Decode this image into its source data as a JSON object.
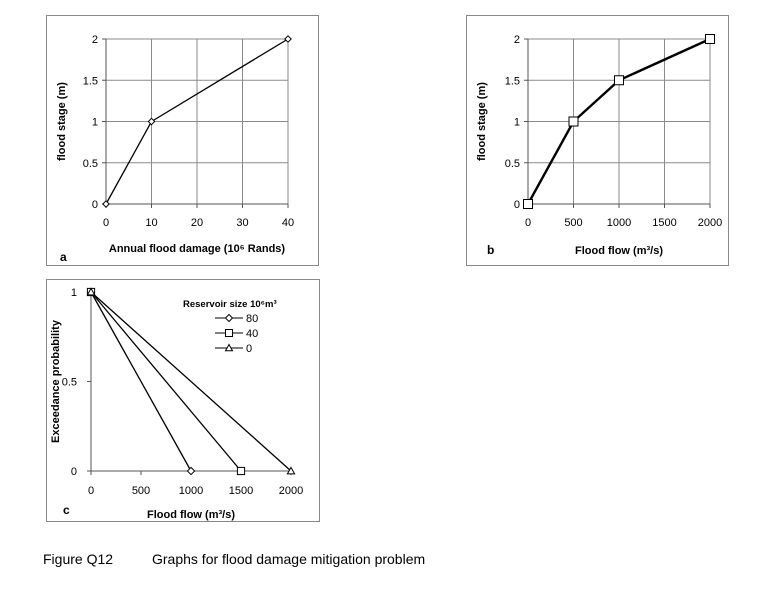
{
  "figure": {
    "number": "Figure Q12",
    "caption": "Graphs for flood damage mitigation problem"
  },
  "chart_data": [
    {
      "id": "a",
      "panel_label": "a",
      "type": "line",
      "title": "",
      "xlabel": "Annual flood damage (10⁶ Rands)",
      "ylabel": "flood stage (m)",
      "xlim": [
        0,
        40
      ],
      "ylim": [
        0,
        2
      ],
      "x_ticks": [
        0,
        10,
        20,
        30,
        40
      ],
      "y_ticks": [
        0,
        0.5,
        1,
        1.5,
        2
      ],
      "x_tick_labels": [
        "0",
        "10",
        "20",
        "30",
        "40"
      ],
      "y_tick_labels": [
        "0",
        "0.5",
        "1",
        "1.5",
        "2"
      ],
      "grid": true,
      "series": [
        {
          "name": "",
          "marker": "diamond",
          "x": [
            0,
            10,
            40
          ],
          "y": [
            0,
            1,
            2
          ]
        }
      ]
    },
    {
      "id": "b",
      "panel_label": "b",
      "type": "line",
      "title": "",
      "xlabel": "Flood flow (m³/s)",
      "ylabel": "flood stage (m)",
      "xlim": [
        0,
        2000
      ],
      "ylim": [
        0,
        2
      ],
      "x_ticks": [
        0,
        500,
        1000,
        1500,
        2000
      ],
      "y_ticks": [
        0,
        0.5,
        1,
        1.5,
        2
      ],
      "x_tick_labels": [
        "0",
        "500",
        "1000",
        "1500",
        "2000"
      ],
      "y_tick_labels": [
        "0",
        "0.5",
        "1",
        "1.5",
        "2"
      ],
      "grid": true,
      "series": [
        {
          "name": "",
          "marker": "square",
          "x": [
            0,
            500,
            1000,
            2000
          ],
          "y": [
            0,
            1,
            1.5,
            2
          ]
        }
      ]
    },
    {
      "id": "c",
      "panel_label": "c",
      "type": "line",
      "title": "",
      "xlabel": "Flood flow (m³/s)",
      "ylabel": "Exceedance probability",
      "xlim": [
        0,
        2000
      ],
      "ylim": [
        0,
        1
      ],
      "x_ticks": [
        0,
        500,
        1000,
        1500,
        2000
      ],
      "y_ticks": [
        0,
        0.5,
        1
      ],
      "x_tick_labels": [
        "0",
        "500",
        "1000",
        "1500",
        "2000"
      ],
      "y_tick_labels": [
        "0",
        "0.5",
        "1"
      ],
      "grid": false,
      "legend_title": "Reservoir size 10⁶m³",
      "legend_position": "top-right",
      "series": [
        {
          "name": "80",
          "marker": "diamond",
          "x": [
            0,
            1000
          ],
          "y": [
            1,
            0
          ]
        },
        {
          "name": "40",
          "marker": "square",
          "x": [
            0,
            1500
          ],
          "y": [
            1,
            0
          ]
        },
        {
          "name": "0",
          "marker": "triangle",
          "x": [
            0,
            2000
          ],
          "y": [
            1,
            0
          ]
        }
      ]
    }
  ]
}
